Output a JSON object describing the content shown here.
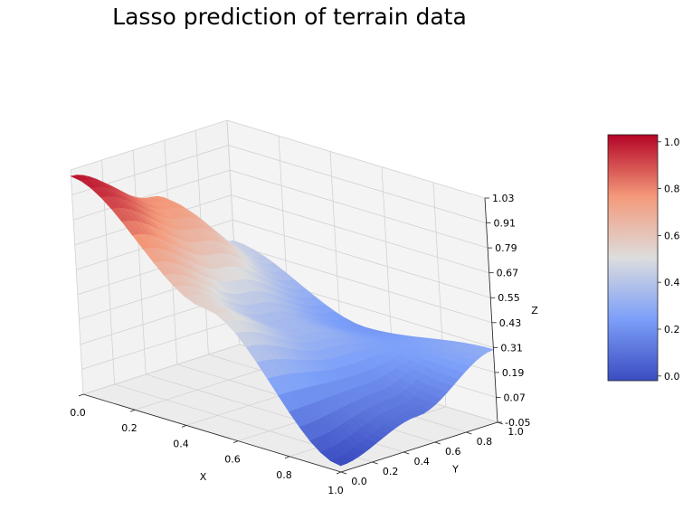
{
  "chart_data": {
    "type": "surface3d",
    "title": "Lasso prediction of terrain data",
    "xlabel": "X",
    "ylabel": "Y",
    "zlabel": "Z",
    "xlim": [
      0,
      1
    ],
    "ylim": [
      0,
      1
    ],
    "zlim": [
      -0.05,
      1.03
    ],
    "x_ticks": [
      "0.0",
      "0.2",
      "0.4",
      "0.6",
      "0.8",
      "1.0"
    ],
    "y_ticks": [
      "0.0",
      "0.2",
      "0.4",
      "0.6",
      "0.8",
      "1.0"
    ],
    "z_ticks": [
      "-0.05",
      "0.07",
      "0.19",
      "0.31",
      "0.43",
      "0.55",
      "0.67",
      "0.79",
      "0.91",
      "1.03"
    ],
    "colormap": "coolwarm",
    "colorbar_ticks": [
      "0.0",
      "0.2",
      "0.4",
      "0.6",
      "0.8",
      "1.0"
    ],
    "colorbar_range": [
      -0.02,
      1.03
    ],
    "surface_samples": [
      {
        "x": 0.0,
        "y": 0.0,
        "z": 1.0
      },
      {
        "x": 0.0,
        "y": 0.5,
        "z": 0.78
      },
      {
        "x": 0.0,
        "y": 1.0,
        "z": 0.45
      },
      {
        "x": 0.5,
        "y": 0.0,
        "z": 0.55
      },
      {
        "x": 0.5,
        "y": 0.5,
        "z": 0.35
      },
      {
        "x": 0.5,
        "y": 1.0,
        "z": 0.22
      },
      {
        "x": 1.0,
        "y": 0.0,
        "z": -0.02
      },
      {
        "x": 1.0,
        "y": 0.5,
        "z": 0.1
      },
      {
        "x": 1.0,
        "y": 1.0,
        "z": 0.3
      }
    ],
    "grid": true,
    "colors": {
      "pane": "#f2f2f2",
      "grid": "#d2d2d2",
      "edge": "#222222"
    }
  }
}
